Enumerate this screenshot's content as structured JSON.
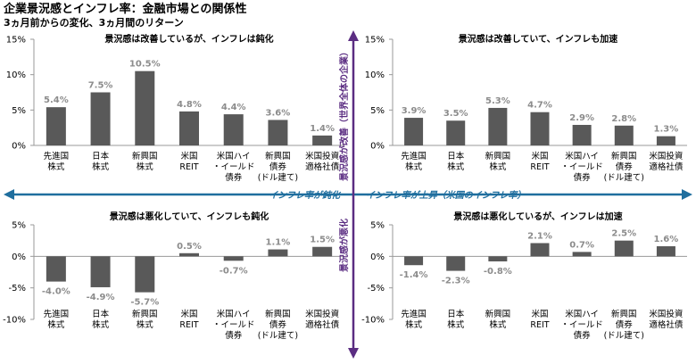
{
  "title": "企業景況感とインフレ率：金融市場との関係性",
  "subtitle": "3ヵ月前からの変化、3ヵ月間のリターン",
  "axes": {
    "h_left_label": "インフレ率が鈍化",
    "h_right_label": "インフレ率が上昇（米国のインフレ率）",
    "v_top_label": "景況感が改善（世界全体の企業）",
    "v_bottom_label": "景況感が悪化"
  },
  "colors": {
    "bar": "#595959",
    "value_label": "#8c8c8c",
    "h_arrow": "#1f6e9e",
    "v_arrow": "#5b2d82"
  },
  "chart_data": [
    {
      "type": "bar",
      "panel": "top-left",
      "title": "景況感は改善しているが、インフレは鈍化",
      "categories": [
        "先進国\n株式",
        "日本\n株式",
        "新興国\n株式",
        "米国\nREIT",
        "米国ハイ\n・イールド\n債券",
        "新興国\n債券\n(ドル建て)",
        "米国投資\n適格社債"
      ],
      "values": [
        5.4,
        7.5,
        10.5,
        4.8,
        4.4,
        3.6,
        1.4
      ],
      "labels": [
        "5.4%",
        "7.5%",
        "10.5%",
        "4.8%",
        "4.4%",
        "3.6%",
        "1.4%"
      ],
      "ylim": [
        0,
        15
      ],
      "yticks": [
        0,
        5,
        10,
        15
      ],
      "ytick_labels": [
        "0%",
        "5%",
        "10%",
        "15%"
      ]
    },
    {
      "type": "bar",
      "panel": "top-right",
      "title": "景況感は改善していて、インフレも加速",
      "categories": [
        "先進国\n株式",
        "日本\n株式",
        "新興国\n株式",
        "米国\nREIT",
        "米国ハイ\n・イールド\n債券",
        "新興国\n債券\n(ドル建て)",
        "米国投資\n適格社債"
      ],
      "values": [
        3.9,
        3.5,
        5.3,
        4.7,
        2.9,
        2.8,
        1.3
      ],
      "labels": [
        "3.9%",
        "3.5%",
        "5.3%",
        "4.7%",
        "2.9%",
        "2.8%",
        "1.3%"
      ],
      "ylim": [
        0,
        15
      ],
      "yticks": [
        0,
        5,
        10,
        15
      ],
      "ytick_labels": [
        "0%",
        "5%",
        "10%",
        "15%"
      ]
    },
    {
      "type": "bar",
      "panel": "bottom-left",
      "title": "景況感は悪化していて、インフレも鈍化",
      "categories": [
        "先進国\n株式",
        "日本\n株式",
        "新興国\n株式",
        "米国\nREIT",
        "米国ハイ\n・イールド\n債券",
        "新興国\n債券\n(ドル建て)",
        "米国投資\n適格社債"
      ],
      "values": [
        -4.0,
        -4.9,
        -5.7,
        0.5,
        -0.7,
        1.1,
        1.5
      ],
      "labels": [
        "-4.0%",
        "-4.9%",
        "-5.7%",
        "0.5%",
        "-0.7%",
        "1.1%",
        "1.5%"
      ],
      "ylim": [
        -10,
        5
      ],
      "yticks": [
        -10,
        -5,
        0,
        5
      ],
      "ytick_labels": [
        "-10%",
        "-5%",
        "0%",
        "5%"
      ]
    },
    {
      "type": "bar",
      "panel": "bottom-right",
      "title": "景況感は悪化しているが、インフレは加速",
      "categories": [
        "先進国\n株式",
        "日本\n株式",
        "新興国\n株式",
        "米国\nREIT",
        "米国ハイ\n・イールド\n債券",
        "新興国\n債券\n(ドル建て)",
        "米国投資\n適格社債"
      ],
      "values": [
        -1.4,
        -2.3,
        -0.8,
        2.1,
        0.7,
        2.5,
        1.6
      ],
      "labels": [
        "-1.4%",
        "-2.3%",
        "-0.8%",
        "2.1%",
        "0.7%",
        "2.5%",
        "1.6%"
      ],
      "ylim": [
        -10,
        5
      ],
      "yticks": [
        -10,
        -5,
        0,
        5
      ],
      "ytick_labels": [
        "-10%",
        "-5%",
        "0%",
        "5%"
      ]
    }
  ]
}
